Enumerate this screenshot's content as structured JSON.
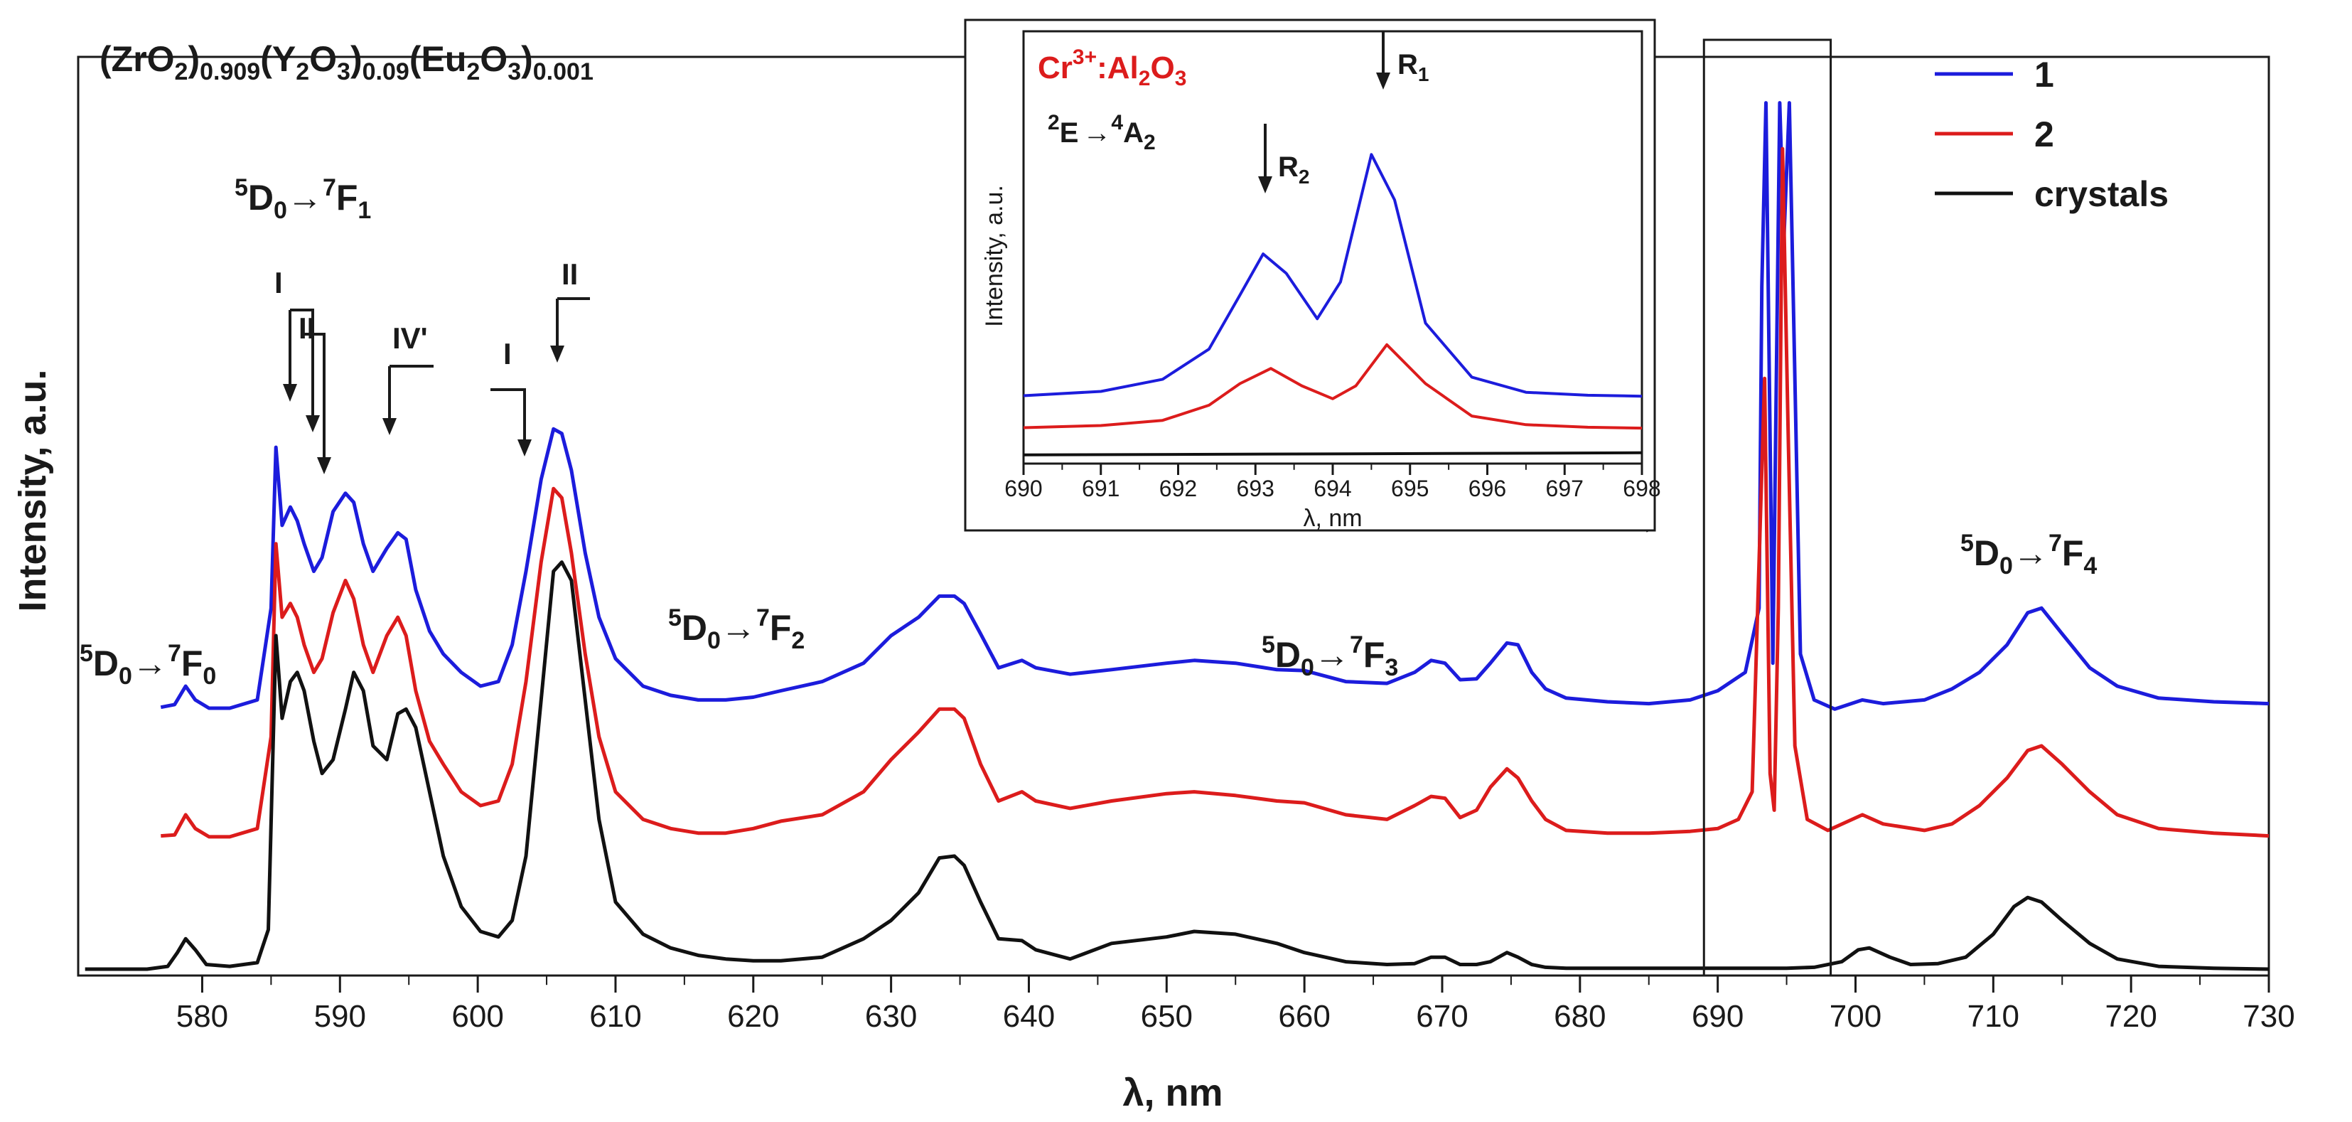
{
  "chart_data": [
    {
      "type": "line",
      "title": "(ZrO2)0.909(Y2O3)0.09(Eu2O3)0.001",
      "title_parts": [
        "(ZrO",
        "2",
        ")",
        "0.909",
        "(Y",
        "2",
        "O",
        "3",
        ")",
        "0.09",
        "(Eu",
        "2",
        "O",
        "3",
        ")",
        "0.001"
      ],
      "xlabel": "λ, nm",
      "ylabel": "Intensity, a.u.",
      "xlim": [
        571,
        730
      ],
      "ylim": [
        0,
        1
      ],
      "xticks": [
        580,
        590,
        600,
        610,
        620,
        630,
        640,
        650,
        660,
        670,
        680,
        690,
        700,
        710,
        720,
        730
      ],
      "series": [
        {
          "name": "1",
          "color": "#1c1cdc",
          "x": [
            577.0,
            578.0,
            578.8,
            579.5,
            580.5,
            582,
            584,
            585.0,
            585.35,
            585.8,
            586.4,
            586.9,
            587.4,
            588.1,
            588.7,
            589.5,
            590.4,
            591.0,
            591.7,
            592.4,
            593.4,
            594.2,
            594.8,
            595.5,
            596.5,
            597.5,
            598.8,
            600.2,
            601.5,
            602.5,
            603.5,
            604.6,
            605.5,
            606.1,
            606.8,
            607.8,
            608.8,
            610,
            612,
            614,
            616,
            618,
            620,
            622,
            625,
            628,
            630,
            632,
            633.5,
            634.6,
            635.3,
            636.5,
            637.8,
            639.5,
            640.5,
            643,
            646,
            650,
            652,
            655,
            658,
            660,
            663,
            666,
            668,
            669.2,
            670.2,
            671.3,
            672.5,
            673.5,
            674.7,
            675.5,
            676.5,
            677.5,
            679,
            682,
            685,
            688,
            690,
            692,
            693,
            693.2,
            693.5,
            694,
            694.5,
            694.8,
            695.2,
            696,
            697,
            698.5,
            700.5,
            702,
            705,
            707,
            709,
            711,
            712.5,
            713.5,
            715,
            717,
            719,
            722,
            726,
            730
          ],
          "y": [
            0.292,
            0.295,
            0.315,
            0.3,
            0.291,
            0.291,
            0.3,
            0.4,
            0.575,
            0.49,
            0.51,
            0.495,
            0.47,
            0.44,
            0.455,
            0.505,
            0.525,
            0.515,
            0.47,
            0.44,
            0.465,
            0.482,
            0.475,
            0.42,
            0.375,
            0.35,
            0.33,
            0.315,
            0.32,
            0.36,
            0.44,
            0.54,
            0.595,
            0.59,
            0.55,
            0.46,
            0.39,
            0.345,
            0.315,
            0.305,
            0.3,
            0.3,
            0.303,
            0.31,
            0.32,
            0.34,
            0.37,
            0.39,
            0.413,
            0.413,
            0.405,
            0.372,
            0.335,
            0.343,
            0.335,
            0.328,
            0.333,
            0.34,
            0.343,
            0.34,
            0.333,
            0.332,
            0.32,
            0.318,
            0.33,
            0.343,
            0.34,
            0.322,
            0.323,
            0.34,
            0.362,
            0.36,
            0.33,
            0.312,
            0.302,
            0.298,
            0.296,
            0.3,
            0.31,
            0.33,
            0.4,
            0.75,
            0.95,
            0.34,
            0.95,
            0.8,
            0.95,
            0.35,
            0.3,
            0.29,
            0.3,
            0.296,
            0.3,
            0.312,
            0.33,
            0.36,
            0.395,
            0.4,
            0.372,
            0.335,
            0.315,
            0.302,
            0.298,
            0.296
          ]
        },
        {
          "name": "2",
          "color": "#dc1c1c",
          "x": [
            577.0,
            578.0,
            578.8,
            579.5,
            580.5,
            582,
            584,
            585.0,
            585.35,
            585.8,
            586.4,
            586.9,
            587.4,
            588.1,
            588.7,
            589.5,
            590.4,
            591.0,
            591.7,
            592.4,
            593.4,
            594.2,
            594.8,
            595.5,
            596.5,
            597.5,
            598.8,
            600.2,
            601.5,
            602.5,
            603.5,
            604.6,
            605.5,
            606.1,
            606.8,
            607.8,
            608.8,
            610,
            612,
            614,
            616,
            618,
            620,
            622,
            625,
            628,
            630,
            632,
            633.5,
            634.6,
            635.3,
            636.5,
            637.8,
            639.5,
            640.5,
            643,
            646,
            650,
            652,
            655,
            658,
            660,
            663,
            666,
            668,
            669.2,
            670.2,
            671.3,
            672.5,
            673.5,
            674.7,
            675.5,
            676.5,
            677.5,
            679,
            682,
            685,
            688,
            690,
            691.5,
            692.5,
            693.0,
            693.4,
            693.8,
            694.1,
            694.4,
            694.7,
            695.1,
            695.6,
            696.5,
            698,
            700.5,
            702,
            705,
            707,
            709,
            711,
            712.5,
            713.5,
            715,
            717,
            719,
            722,
            726,
            730
          ],
          "y": [
            0.152,
            0.153,
            0.175,
            0.16,
            0.151,
            0.151,
            0.16,
            0.26,
            0.47,
            0.39,
            0.405,
            0.39,
            0.36,
            0.33,
            0.345,
            0.395,
            0.43,
            0.41,
            0.36,
            0.33,
            0.37,
            0.39,
            0.37,
            0.31,
            0.255,
            0.23,
            0.2,
            0.185,
            0.19,
            0.23,
            0.32,
            0.45,
            0.53,
            0.52,
            0.46,
            0.35,
            0.26,
            0.2,
            0.17,
            0.16,
            0.155,
            0.155,
            0.16,
            0.168,
            0.175,
            0.2,
            0.235,
            0.265,
            0.29,
            0.29,
            0.28,
            0.23,
            0.19,
            0.2,
            0.19,
            0.182,
            0.19,
            0.198,
            0.2,
            0.196,
            0.19,
            0.188,
            0.175,
            0.17,
            0.185,
            0.195,
            0.193,
            0.172,
            0.18,
            0.205,
            0.225,
            0.215,
            0.19,
            0.17,
            0.158,
            0.155,
            0.155,
            0.157,
            0.16,
            0.17,
            0.2,
            0.45,
            0.65,
            0.22,
            0.18,
            0.4,
            0.9,
            0.6,
            0.25,
            0.17,
            0.158,
            0.175,
            0.165,
            0.158,
            0.165,
            0.185,
            0.215,
            0.245,
            0.25,
            0.23,
            0.2,
            0.175,
            0.16,
            0.155,
            0.152
          ]
        },
        {
          "name": "crystals",
          "color": "#111111",
          "x": [
            571.5,
            574,
            576,
            577.5,
            578.2,
            578.8,
            579.5,
            580.3,
            582,
            584,
            584.8,
            585.35,
            585.8,
            586.4,
            586.9,
            587.4,
            588.1,
            588.7,
            589.5,
            590.4,
            591.0,
            591.7,
            592.4,
            593.4,
            594.2,
            594.8,
            595.5,
            596.5,
            597.5,
            598.8,
            600.2,
            601.5,
            602.5,
            603.5,
            604.6,
            605.5,
            606.1,
            606.8,
            607.8,
            608.8,
            610,
            612,
            614,
            616,
            618,
            620,
            622,
            625,
            628,
            630,
            632,
            633.5,
            634.6,
            635.3,
            636.5,
            637.8,
            639.5,
            640.5,
            643,
            646,
            650,
            652,
            655,
            658,
            660,
            663,
            666,
            668,
            669.2,
            670.2,
            671.3,
            672.5,
            673.5,
            674.7,
            675.5,
            676.5,
            677.5,
            679,
            682,
            685,
            688,
            690,
            693,
            695,
            697,
            699,
            700.2,
            701,
            702.5,
            704,
            706,
            708,
            710,
            711.5,
            712.5,
            713.5,
            715,
            717,
            719,
            722,
            726,
            730
          ],
          "y": [
            0.007,
            0.007,
            0.007,
            0.01,
            0.025,
            0.04,
            0.028,
            0.012,
            0.01,
            0.014,
            0.05,
            0.37,
            0.28,
            0.32,
            0.33,
            0.31,
            0.255,
            0.22,
            0.235,
            0.29,
            0.33,
            0.31,
            0.25,
            0.235,
            0.285,
            0.29,
            0.27,
            0.2,
            0.13,
            0.075,
            0.048,
            0.042,
            0.06,
            0.13,
            0.3,
            0.44,
            0.45,
            0.43,
            0.3,
            0.17,
            0.08,
            0.045,
            0.03,
            0.022,
            0.018,
            0.016,
            0.016,
            0.02,
            0.04,
            0.06,
            0.09,
            0.128,
            0.13,
            0.12,
            0.08,
            0.04,
            0.038,
            0.028,
            0.018,
            0.035,
            0.042,
            0.048,
            0.045,
            0.035,
            0.025,
            0.015,
            0.012,
            0.013,
            0.02,
            0.02,
            0.012,
            0.012,
            0.015,
            0.025,
            0.02,
            0.012,
            0.009,
            0.008,
            0.008,
            0.008,
            0.008,
            0.008,
            0.008,
            0.008,
            0.009,
            0.015,
            0.028,
            0.03,
            0.02,
            0.012,
            0.013,
            0.02,
            0.045,
            0.075,
            0.085,
            0.08,
            0.06,
            0.035,
            0.018,
            0.01,
            0.008,
            0.007
          ]
        }
      ],
      "legend": {
        "position": "top-right",
        "entries": [
          "1",
          "2",
          "crystals"
        ]
      },
      "annotations": {
        "f0": {
          "text": "D",
          "sup_a": "5",
          "sub_a": "0",
          "arrow": "→",
          "sup_b": "7",
          "main_b": "F",
          "sub_b": "0"
        },
        "f1": {
          "text": "D",
          "sup_a": "5",
          "sub_a": "0",
          "arrow": "→",
          "sup_b": "7",
          "main_b": "F",
          "sub_b": "1"
        },
        "f2": {
          "text": "D",
          "sup_a": "5",
          "sub_a": "0",
          "arrow": "→",
          "sup_b": "7",
          "main_b": "F",
          "sub_b": "2"
        },
        "f3": {
          "text": "D",
          "sup_a": "5",
          "sub_a": "0",
          "arrow": "→",
          "sup_b": "7",
          "main_b": "F",
          "sub_b": "3"
        },
        "f4": {
          "text": "D",
          "sup_a": "5",
          "sub_a": "0",
          "arrow": "→",
          "sup_b": "7",
          "main_b": "F",
          "sub_b": "4"
        },
        "site_I": "I",
        "site_II": "II",
        "site_IV": "IV'"
      },
      "highlight_range": [
        689,
        698.2
      ]
    },
    {
      "type": "line",
      "title": "Cr3+:Al2O3",
      "title_parts": [
        "Cr",
        "3+",
        ":Al",
        "2",
        "O",
        "3"
      ],
      "transition": {
        "sup_a": "2",
        "main_a": "E",
        "arrow": "→",
        "sup_b": "4",
        "main_b": "A",
        "sub_b": "2"
      },
      "peak_labels": [
        {
          "main": "R",
          "sub": "2"
        },
        {
          "main": "R",
          "sub": "1"
        }
      ],
      "xlabel": "λ, nm",
      "ylabel": "Intensity, a.u.",
      "xlim": [
        690,
        698
      ],
      "ylim": [
        0,
        1
      ],
      "xticks": [
        690,
        691,
        692,
        693,
        694,
        695,
        696,
        697,
        698
      ],
      "series": [
        {
          "name": "1",
          "color": "#1c1cdc",
          "x": [
            690,
            691,
            691.8,
            692.4,
            692.8,
            693.1,
            693.4,
            693.8,
            694.1,
            694.5,
            694.8,
            695.2,
            695.8,
            696.5,
            697.3,
            698
          ],
          "y": [
            0.157,
            0.167,
            0.195,
            0.265,
            0.39,
            0.485,
            0.44,
            0.335,
            0.42,
            0.715,
            0.61,
            0.325,
            0.2,
            0.165,
            0.158,
            0.156
          ]
        },
        {
          "name": "2",
          "color": "#dc1c1c",
          "x": [
            690,
            691,
            691.8,
            692.4,
            692.8,
            693.2,
            693.6,
            694.0,
            694.3,
            694.7,
            695.2,
            695.8,
            696.5,
            697.3,
            698
          ],
          "y": [
            0.083,
            0.088,
            0.1,
            0.135,
            0.185,
            0.22,
            0.18,
            0.15,
            0.18,
            0.275,
            0.185,
            0.11,
            0.09,
            0.084,
            0.082
          ]
        },
        {
          "name": "crystals",
          "color": "#111111",
          "x": [
            690,
            698
          ],
          "y": [
            0.02,
            0.025
          ]
        }
      ]
    }
  ]
}
